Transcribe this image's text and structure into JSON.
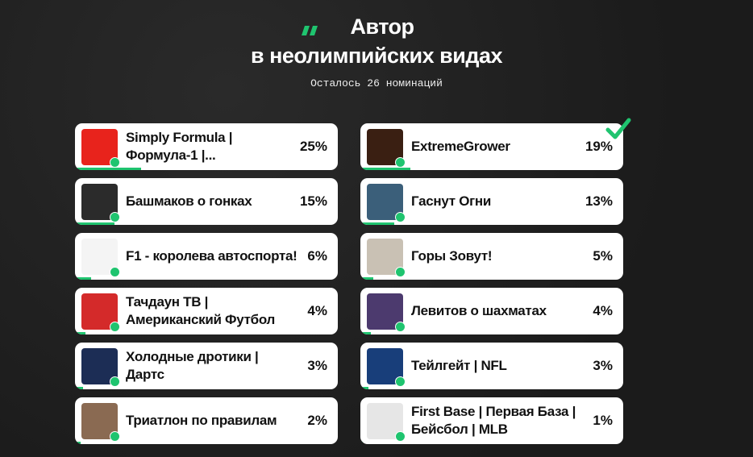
{
  "header": {
    "title_line1": "Автор",
    "title_line2": "в неолимпийских видах",
    "subtitle": "Осталось 26 номинаций"
  },
  "nominees": [
    {
      "name": "Simply Formula | Формула-1 |...",
      "value": 25,
      "value_label": "25%"
    },
    {
      "name": "ExtremeGrower",
      "value": 19,
      "value_label": "19%"
    },
    {
      "name": "Башмаков о гонках",
      "value": 15,
      "value_label": "15%"
    },
    {
      "name": "Гаснут Огни",
      "value": 13,
      "value_label": "13%"
    },
    {
      "name": "F1 - королева автоспорта!",
      "value": 6,
      "value_label": "6%"
    },
    {
      "name": "Горы Зовут!",
      "value": 5,
      "value_label": "5%"
    },
    {
      "name": "Тачдаун ТВ | Американский Футбол",
      "value": 4,
      "value_label": "4%"
    },
    {
      "name": "Левитов о шахматах",
      "value": 4,
      "value_label": "4%"
    },
    {
      "name": "Холодные дротики | Дартс",
      "value": 3,
      "value_label": "3%"
    },
    {
      "name": "Тейлгейт | NFL",
      "value": 3,
      "value_label": "3%"
    },
    {
      "name": "Триатлон по правилам",
      "value": 2,
      "value_label": "2%"
    },
    {
      "name": "First Base | Первая База | Бейсбол | MLB",
      "value": 1,
      "value_label": "1%"
    }
  ]
}
